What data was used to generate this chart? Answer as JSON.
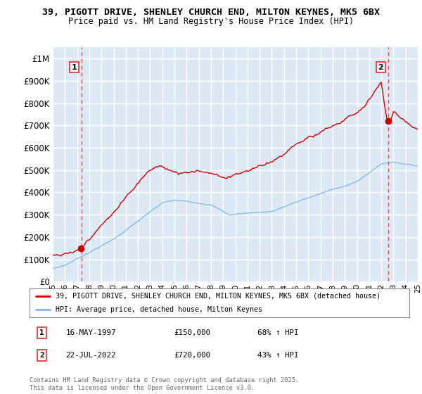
{
  "title_line1": "39, PIGOTT DRIVE, SHENLEY CHURCH END, MILTON KEYNES, MK5 6BX",
  "title_line2": "Price paid vs. HM Land Registry's House Price Index (HPI)",
  "bg_color": "#dce9f5",
  "fig_bg_color": "#ffffff",
  "grid_color": "#ffffff",
  "red_line_color": "#cc0000",
  "blue_line_color": "#7ab8e8",
  "dashed_line_color": "#e05050",
  "legend_label_red": "39, PIGOTT DRIVE, SHENLEY CHURCH END, MILTON KEYNES, MK5 6BX (detached house)",
  "legend_label_blue": "HPI: Average price, detached house, Milton Keynes",
  "purchase1_date": "16-MAY-1997",
  "purchase1_price": "£150,000",
  "purchase1_hpi": "68% ↑ HPI",
  "purchase2_date": "22-JUL-2022",
  "purchase2_price": "£720,000",
  "purchase2_hpi": "43% ↑ HPI",
  "copyright_text": "Contains HM Land Registry data © Crown copyright and database right 2025.\nThis data is licensed under the Open Government Licence v3.0.",
  "ylim": [
    0,
    1050000
  ],
  "yticks": [
    0,
    100000,
    200000,
    300000,
    400000,
    500000,
    600000,
    700000,
    800000,
    900000,
    1000000
  ],
  "ytick_labels": [
    "£0",
    "£100K",
    "£200K",
    "£300K",
    "£400K",
    "£500K",
    "£600K",
    "£700K",
    "£800K",
    "£900K",
    "£1M"
  ],
  "year_start": 1995,
  "year_end": 2025,
  "purchase1_year": 1997.37,
  "purchase2_year": 2022.55
}
